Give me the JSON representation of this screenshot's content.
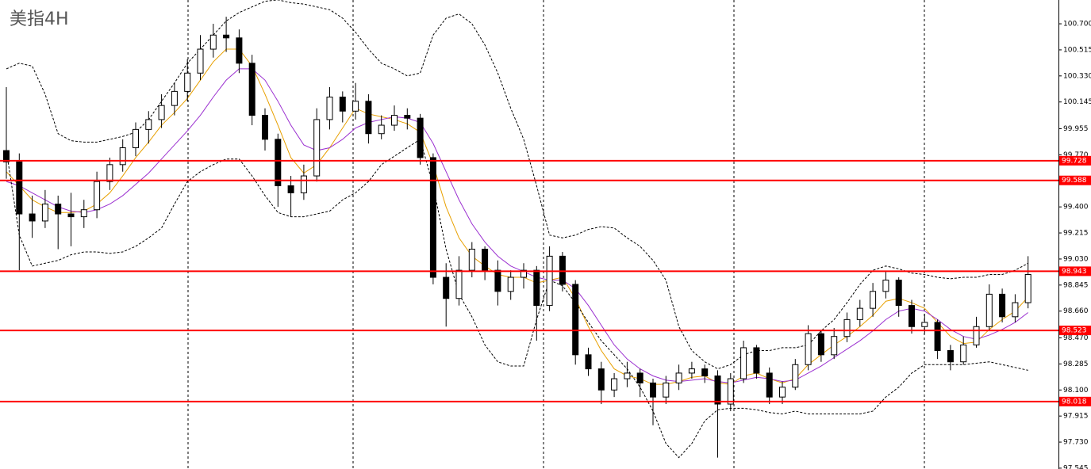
{
  "chart_data": {
    "type": "candlestick",
    "title": "美指4H",
    "ylim": [
      97.539,
      100.869
    ],
    "yticks": [
      {
        "value": 100.7,
        "label": "100.700"
      },
      100.515,
      {
        "value": 100.33,
        "label": "100.330"
      },
      100.145,
      99.955,
      {
        "value": 99.77,
        "label": "99.770"
      },
      {
        "value": 99.4,
        "label": "99.400"
      },
      99.215,
      {
        "value": 99.03,
        "label": "99.030"
      },
      98.845,
      {
        "value": 98.66,
        "label": "98.660"
      },
      {
        "value": 98.47,
        "label": "98.470"
      },
      98.285,
      {
        "value": 98.1,
        "label": "98.100"
      },
      97.915,
      {
        "value": 97.73,
        "label": "97.730"
      },
      97.545
    ],
    "up_color": "#ffffff",
    "down_color": "#000000",
    "level_color": "#ff0000",
    "levels": [
      99.728,
      99.588,
      98.943,
      98.523,
      98.018
    ],
    "candles": [
      [
        99.8,
        100.25,
        99.6,
        99.72
      ],
      [
        99.72,
        99.78,
        98.95,
        99.35
      ],
      [
        99.35,
        99.48,
        99.18,
        99.3
      ],
      [
        99.3,
        99.52,
        99.25,
        99.42
      ],
      [
        99.42,
        99.48,
        99.1,
        99.35
      ],
      [
        99.35,
        99.5,
        99.12,
        99.33
      ],
      [
        99.33,
        99.45,
        99.25,
        99.38
      ],
      [
        99.38,
        99.65,
        99.32,
        99.58
      ],
      [
        99.58,
        99.75,
        99.52,
        99.7
      ],
      [
        99.7,
        99.88,
        99.65,
        99.82
      ],
      [
        99.82,
        100.0,
        99.76,
        99.95
      ],
      [
        99.95,
        100.08,
        99.85,
        100.02
      ],
      [
        100.02,
        100.2,
        99.96,
        100.12
      ],
      [
        100.12,
        100.28,
        100.05,
        100.22
      ],
      [
        100.22,
        100.45,
        100.15,
        100.35
      ],
      [
        100.35,
        100.62,
        100.3,
        100.52
      ],
      [
        100.52,
        100.7,
        100.46,
        100.62
      ],
      [
        100.62,
        100.75,
        100.5,
        100.6
      ],
      [
        100.6,
        100.66,
        100.35,
        100.42
      ],
      [
        100.42,
        100.48,
        99.98,
        100.05
      ],
      [
        100.05,
        100.1,
        99.8,
        99.88
      ],
      [
        99.88,
        99.92,
        99.4,
        99.55
      ],
      [
        99.55,
        99.62,
        99.33,
        99.5
      ],
      [
        99.5,
        99.7,
        99.45,
        99.62
      ],
      [
        99.62,
        100.1,
        99.58,
        100.02
      ],
      [
        100.02,
        100.25,
        99.95,
        100.18
      ],
      [
        100.18,
        100.22,
        100.0,
        100.08
      ],
      [
        100.08,
        100.28,
        100.02,
        100.15
      ],
      [
        100.15,
        100.2,
        99.85,
        99.92
      ],
      [
        99.92,
        100.05,
        99.88,
        99.98
      ],
      [
        99.98,
        100.12,
        99.94,
        100.05
      ],
      [
        100.05,
        100.1,
        99.95,
        100.03
      ],
      [
        100.03,
        100.06,
        99.7,
        99.75
      ],
      [
        99.75,
        99.78,
        98.85,
        98.9
      ],
      [
        98.9,
        99.0,
        98.55,
        98.75
      ],
      [
        98.75,
        99.05,
        98.7,
        98.95
      ],
      [
        98.95,
        99.15,
        98.9,
        99.1
      ],
      [
        99.1,
        99.12,
        98.88,
        98.95
      ],
      [
        98.95,
        99.02,
        98.7,
        98.8
      ],
      [
        98.8,
        98.95,
        98.74,
        98.9
      ],
      [
        98.9,
        99.0,
        98.82,
        98.95
      ],
      [
        98.95,
        98.98,
        98.45,
        98.7
      ],
      [
        98.7,
        99.12,
        98.66,
        99.05
      ],
      [
        99.05,
        99.08,
        98.8,
        98.85
      ],
      [
        98.85,
        98.88,
        98.28,
        98.35
      ],
      [
        98.35,
        98.4,
        98.2,
        98.25
      ],
      [
        98.25,
        98.3,
        98.0,
        98.1
      ],
      [
        98.1,
        98.22,
        98.05,
        98.18
      ],
      [
        98.18,
        98.3,
        98.12,
        98.22
      ],
      [
        98.22,
        98.25,
        98.05,
        98.15
      ],
      [
        98.15,
        98.18,
        97.85,
        98.05
      ],
      [
        98.05,
        98.2,
        98.0,
        98.15
      ],
      [
        98.15,
        98.28,
        98.1,
        98.22
      ],
      [
        98.22,
        98.3,
        98.18,
        98.25
      ],
      [
        98.25,
        98.28,
        98.15,
        98.2
      ],
      [
        98.2,
        98.24,
        97.62,
        98.0
      ],
      [
        98.0,
        98.22,
        97.95,
        98.18
      ],
      [
        98.18,
        98.45,
        98.15,
        98.4
      ],
      [
        98.4,
        98.42,
        98.18,
        98.22
      ],
      [
        98.22,
        98.26,
        98.0,
        98.05
      ],
      [
        98.05,
        98.16,
        98.0,
        98.12
      ],
      [
        98.12,
        98.32,
        98.1,
        98.28
      ],
      [
        98.28,
        98.56,
        98.24,
        98.5
      ],
      [
        98.5,
        98.52,
        98.3,
        98.35
      ],
      [
        98.35,
        98.54,
        98.32,
        98.48
      ],
      [
        98.48,
        98.65,
        98.44,
        98.6
      ],
      [
        98.6,
        98.74,
        98.55,
        98.68
      ],
      [
        98.68,
        98.86,
        98.62,
        98.8
      ],
      [
        98.8,
        98.94,
        98.75,
        98.88
      ],
      [
        98.88,
        98.9,
        98.62,
        98.7
      ],
      [
        98.7,
        98.74,
        98.5,
        98.55
      ],
      [
        98.55,
        98.64,
        98.5,
        98.58
      ],
      [
        98.58,
        98.6,
        98.32,
        98.38
      ],
      [
        98.38,
        98.42,
        98.24,
        98.3
      ],
      [
        98.3,
        98.48,
        98.28,
        98.42
      ],
      [
        98.42,
        98.62,
        98.4,
        98.55
      ],
      [
        98.55,
        98.85,
        98.52,
        98.78
      ],
      [
        98.78,
        98.82,
        98.58,
        98.62
      ],
      [
        98.62,
        98.78,
        98.58,
        98.72
      ],
      [
        98.72,
        99.05,
        98.68,
        98.92
      ]
    ],
    "lines": [
      {
        "color": "#e8a000",
        "dashed": false,
        "values": [
          99.65,
          99.55,
          99.45,
          99.4,
          99.36,
          99.36,
          99.37,
          99.42,
          99.5,
          99.62,
          99.75,
          99.86,
          99.98,
          100.07,
          100.17,
          100.3,
          100.43,
          100.52,
          100.52,
          100.4,
          100.2,
          99.98,
          99.75,
          99.64,
          99.7,
          99.82,
          99.96,
          100.1,
          100.06,
          100.04,
          100.02,
          99.99,
          99.93,
          99.7,
          99.4,
          99.18,
          99.05,
          98.98,
          98.92,
          98.9,
          98.9,
          98.86,
          98.88,
          98.9,
          98.75,
          98.55,
          98.38,
          98.25,
          98.2,
          98.18,
          98.14,
          98.14,
          98.16,
          98.19,
          98.2,
          98.15,
          98.14,
          98.2,
          98.22,
          98.18,
          98.15,
          98.18,
          98.28,
          98.35,
          98.42,
          98.48,
          98.55,
          98.63,
          98.73,
          98.75,
          98.72,
          98.68,
          98.58,
          98.48,
          98.43,
          98.44,
          98.53,
          98.6,
          98.66,
          98.76
        ]
      },
      {
        "color": "#9b30d0",
        "dashed": false,
        "values": [
          99.58,
          99.55,
          99.5,
          99.45,
          99.4,
          99.37,
          99.36,
          99.38,
          99.42,
          99.48,
          99.56,
          99.64,
          99.74,
          99.84,
          99.94,
          100.05,
          100.18,
          100.3,
          100.38,
          100.38,
          100.3,
          100.15,
          99.98,
          99.84,
          99.8,
          99.82,
          99.88,
          99.96,
          100.0,
          100.02,
          100.04,
          100.03,
          100.0,
          99.85,
          99.65,
          99.45,
          99.28,
          99.15,
          99.05,
          98.98,
          98.94,
          98.9,
          98.88,
          98.88,
          98.82,
          98.7,
          98.56,
          98.42,
          98.32,
          98.25,
          98.2,
          98.17,
          98.16,
          98.17,
          98.18,
          98.16,
          98.15,
          98.17,
          98.19,
          98.18,
          98.16,
          98.17,
          98.22,
          98.27,
          98.33,
          98.39,
          98.45,
          98.52,
          98.6,
          98.66,
          98.68,
          98.66,
          98.6,
          98.53,
          98.48,
          98.46,
          98.49,
          98.53,
          98.58,
          98.65
        ]
      },
      {
        "color": "#000000",
        "dashed": true,
        "values": [
          100.38,
          100.42,
          100.4,
          100.2,
          99.92,
          99.87,
          99.86,
          99.86,
          99.88,
          99.9,
          99.93,
          100.02,
          100.15,
          100.28,
          100.42,
          100.52,
          100.62,
          100.72,
          100.78,
          100.82,
          100.86,
          100.87,
          100.85,
          100.84,
          100.82,
          100.8,
          100.74,
          100.64,
          100.52,
          100.42,
          100.38,
          100.33,
          100.35,
          100.62,
          100.74,
          100.77,
          100.7,
          100.55,
          100.35,
          100.1,
          99.88,
          99.55,
          99.2,
          99.18,
          99.2,
          99.24,
          99.26,
          99.25,
          99.18,
          99.12,
          99.02,
          98.88,
          98.55,
          98.38,
          98.3,
          98.25,
          98.28,
          98.35,
          98.38,
          98.38,
          98.4,
          98.4,
          98.42,
          98.52,
          98.6,
          98.72,
          98.85,
          98.95,
          98.98,
          98.96,
          98.93,
          98.92,
          98.9,
          98.89,
          98.9,
          98.9,
          98.92,
          98.92,
          98.95,
          99.0
        ]
      },
      {
        "color": "#000000",
        "dashed": true,
        "values": [
          99.8,
          99.2,
          98.98,
          99.0,
          99.02,
          99.06,
          99.08,
          99.08,
          99.07,
          99.08,
          99.12,
          99.18,
          99.25,
          99.42,
          99.58,
          99.65,
          99.7,
          99.74,
          99.74,
          99.62,
          99.48,
          99.36,
          99.33,
          99.33,
          99.35,
          99.37,
          99.45,
          99.5,
          99.58,
          99.7,
          99.76,
          99.82,
          99.88,
          99.55,
          99.1,
          98.78,
          98.62,
          98.42,
          98.3,
          98.27,
          98.27,
          98.6,
          98.88,
          98.84,
          98.72,
          98.58,
          98.45,
          98.35,
          98.25,
          98.12,
          97.95,
          97.72,
          97.62,
          97.72,
          97.88,
          97.96,
          97.97,
          97.97,
          97.96,
          97.94,
          97.93,
          97.95,
          97.93,
          97.93,
          97.93,
          97.93,
          97.93,
          97.95,
          98.05,
          98.12,
          98.22,
          98.28,
          98.28,
          98.28,
          98.28,
          98.29,
          98.3,
          98.28,
          98.26,
          98.24
        ]
      }
    ]
  }
}
